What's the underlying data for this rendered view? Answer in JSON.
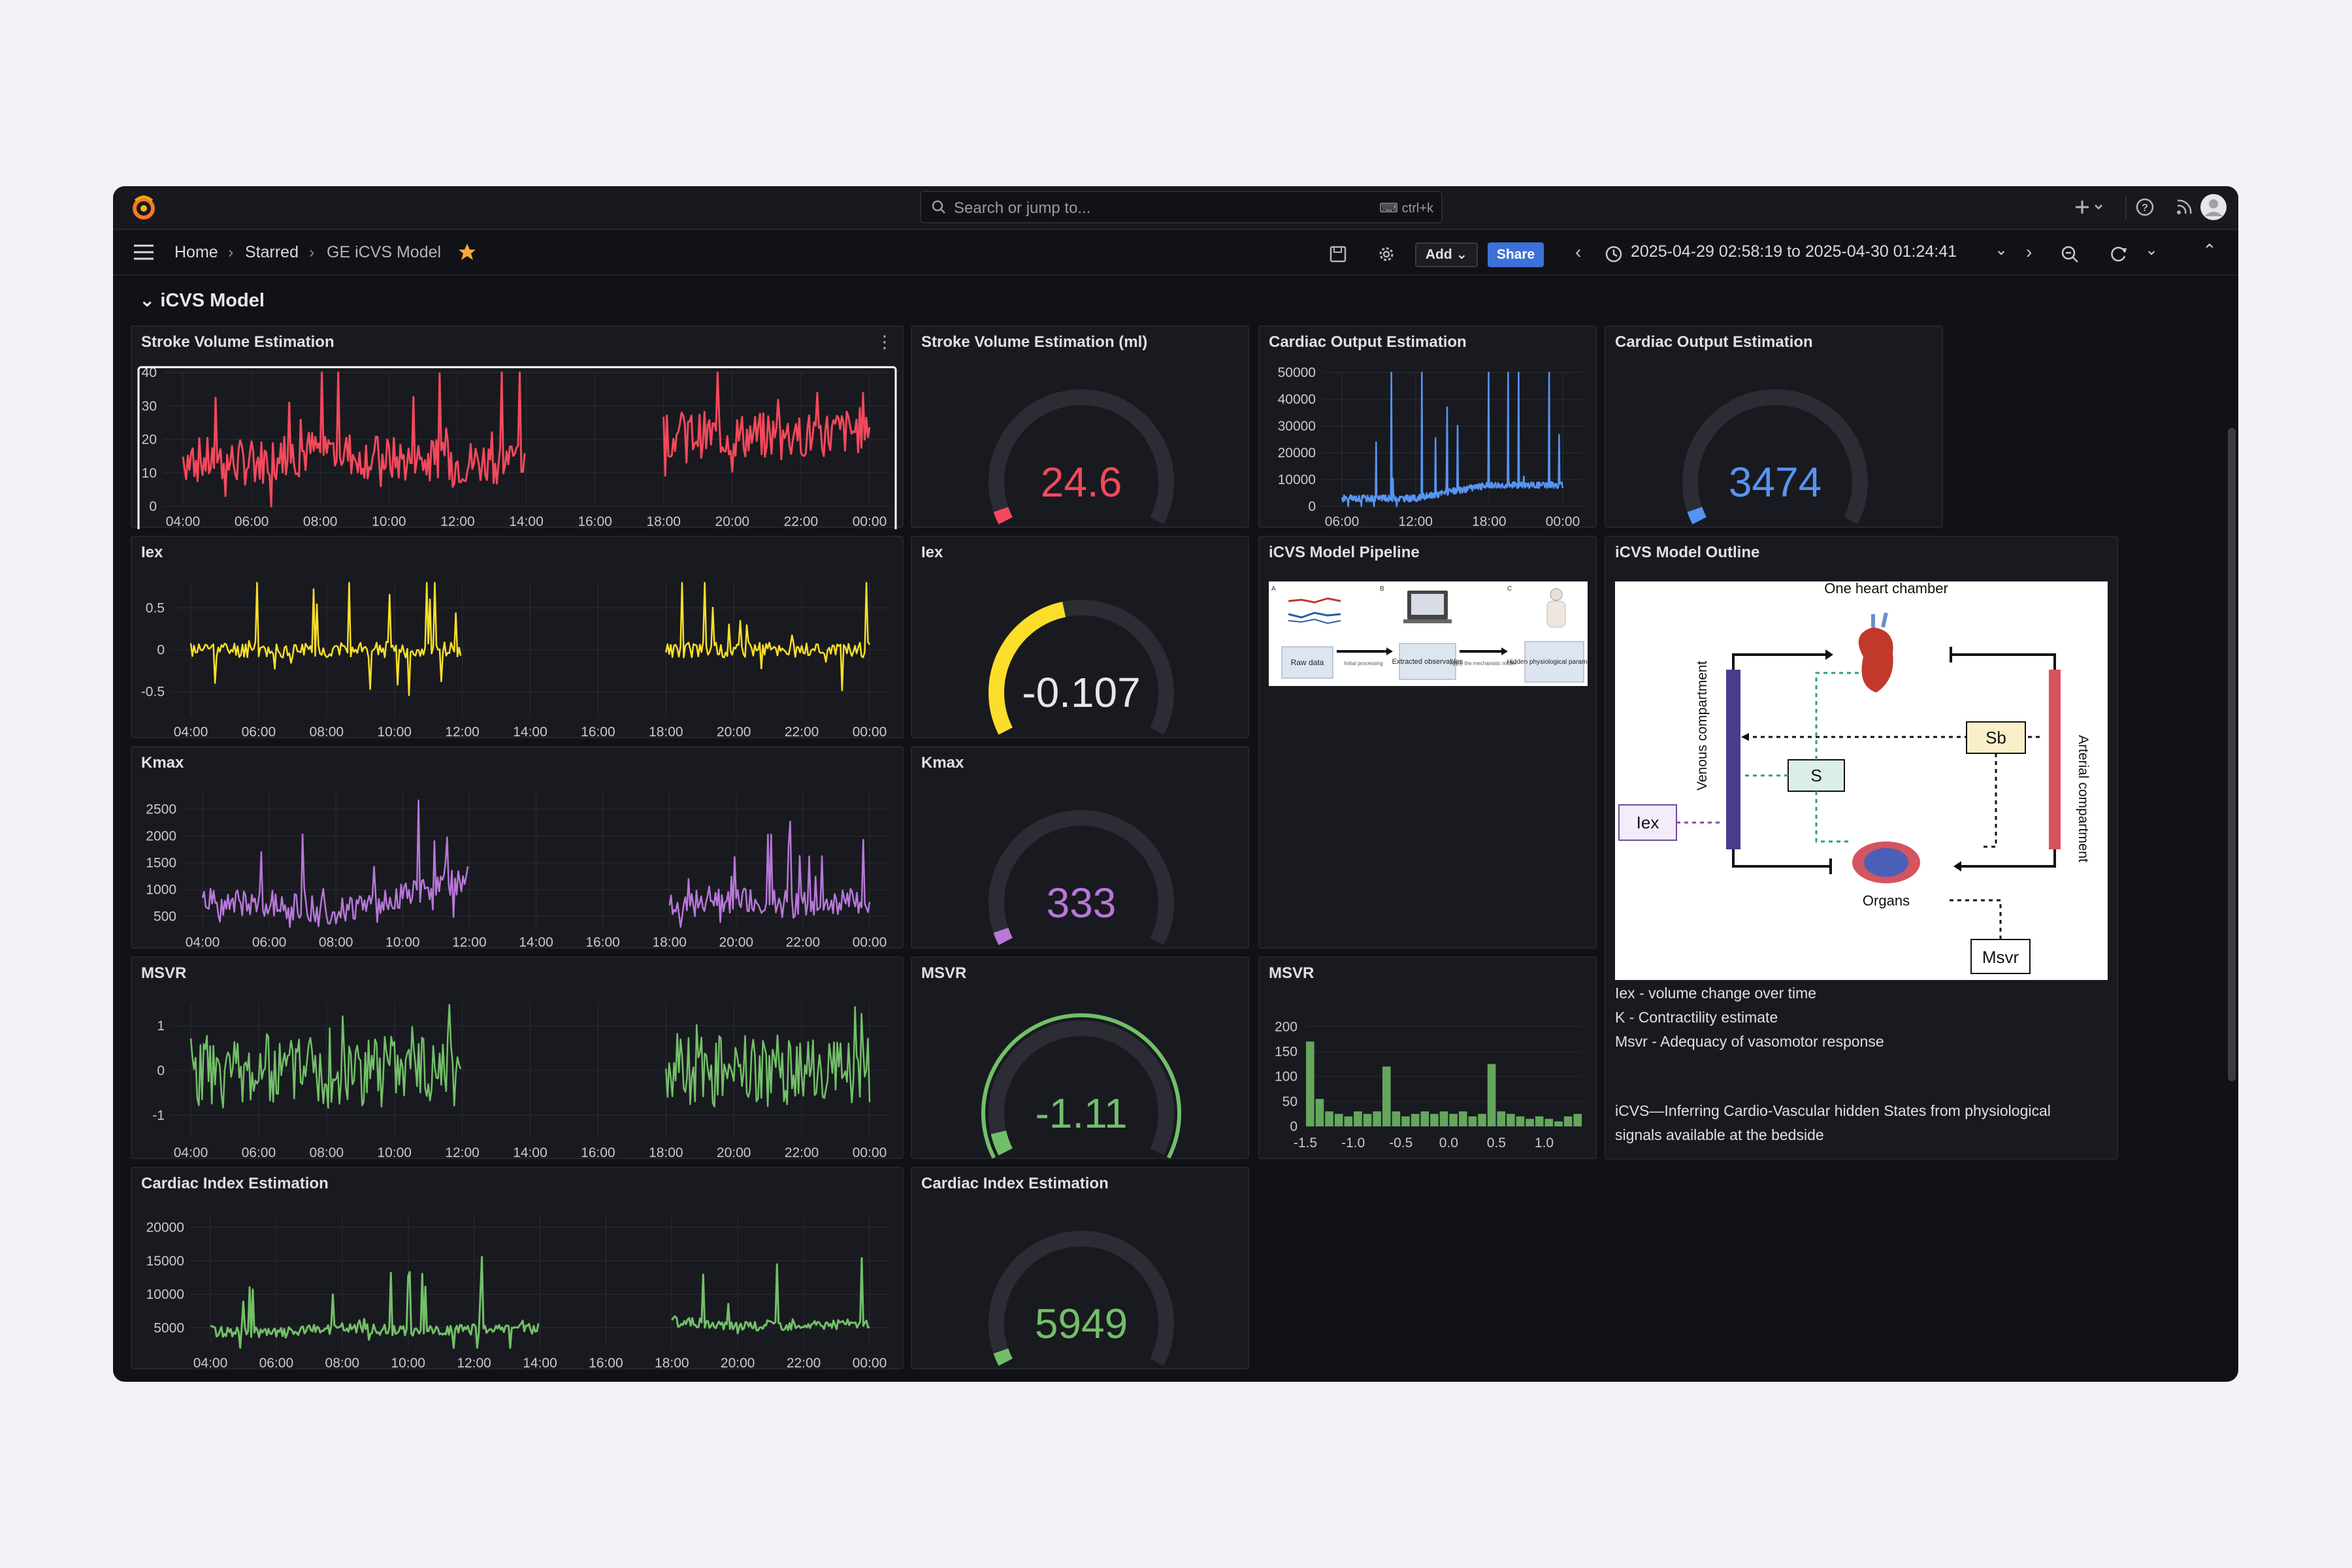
{
  "topbar": {
    "search_placeholder": "Search or jump to...",
    "search_shortcut": "ctrl+k",
    "icons": [
      "grafana-logo-icon",
      "search-icon",
      "keyboard-icon",
      "plus-icon",
      "chevron-down-icon",
      "help-icon",
      "rss-icon",
      "avatar"
    ]
  },
  "navbar": {
    "breadcrumbs": [
      "Home",
      "Starred",
      "GE iCVS Model"
    ],
    "add_label": "Add",
    "share_label": "Share",
    "time_range": "2025-04-29 02:58:19 to 2025-04-30 01:24:41",
    "starred": true
  },
  "row_title": "iCVS Model",
  "colors": {
    "background": "#111217",
    "panel": "#181a1f",
    "red": "#f2495c",
    "blue": "#5794f2",
    "yellow": "#fade2a",
    "purple": "#b877d9",
    "green": "#73bf69",
    "gauge_track": "#2b2c34"
  },
  "panels": {
    "sv_ts": {
      "title": "Stroke Volume Estimation",
      "yticks": [
        "40",
        "30",
        "20",
        "10",
        "0"
      ]
    },
    "sv_gauge": {
      "title": "Stroke Volume Estimation (ml)",
      "value": "24.6",
      "fraction": 0.0
    },
    "co_ts": {
      "title": "Cardiac Output Estimation",
      "yticks": [
        "50000",
        "40000",
        "30000",
        "20000",
        "10000",
        "0"
      ],
      "xticks": [
        "06:00",
        "12:00",
        "18:00",
        "00:00"
      ]
    },
    "co_gauge": {
      "title": "Cardiac Output Estimation",
      "value": "3474",
      "fraction": 0.0
    },
    "iex_ts": {
      "title": "Iex",
      "yticks": [
        "0.5",
        "0",
        "-0.5"
      ]
    },
    "iex_gauge": {
      "title": "Iex",
      "value": "-0.107",
      "fraction": 0.45
    },
    "pipeline": {
      "title": "iCVS Model Pipeline",
      "steps": [
        "Raw data",
        "Initial processing",
        "Extracted observables",
        "Apply the mechanistic model",
        "Hidden physiological parameters"
      ]
    },
    "outline": {
      "title": "iCVS Model Outline",
      "diagram_labels": [
        "One heart chamber",
        "Venous compartment",
        "Arterial compartment",
        "S",
        "Sb",
        "Iex",
        "Organs",
        "Msvr"
      ],
      "legend": [
        "Iex - volume change over time",
        "K - Contractility estimate",
        "Msvr - Adequacy of vasomotor response"
      ],
      "caption": [
        "iCVS—Inferring Cardio-Vascular hidden States from physiological",
        "signals available at the bedside"
      ]
    },
    "kmax_ts": {
      "title": "Kmax",
      "yticks": [
        "2500",
        "2000",
        "1500",
        "1000",
        "500"
      ]
    },
    "kmax_gauge": {
      "title": "Kmax",
      "value": "333",
      "fraction": 0.03
    },
    "msvr_ts": {
      "title": "MSVR",
      "yticks": [
        "1",
        "0",
        "-1"
      ]
    },
    "msvr_gauge": {
      "title": "MSVR",
      "value": "-1.11",
      "fraction": 0.06
    },
    "msvr_hist": {
      "title": "MSVR",
      "yticks": [
        "200",
        "150",
        "100",
        "50",
        "0"
      ],
      "xticks": [
        "-1.5",
        "-1.0",
        "-0.5",
        "0.0",
        "0.5",
        "1.0"
      ]
    },
    "ci_ts": {
      "title": "Cardiac Index Estimation",
      "yticks": [
        "20000",
        "15000",
        "10000",
        "5000"
      ]
    },
    "ci_gauge": {
      "title": "Cardiac Index Estimation",
      "value": "5949",
      "fraction": 0.0
    }
  },
  "time_xticks": [
    "04:00",
    "06:00",
    "08:00",
    "10:00",
    "12:00",
    "14:00",
    "16:00",
    "18:00",
    "20:00",
    "22:00",
    "00:00"
  ],
  "chart_data": [
    {
      "type": "line",
      "title": "Stroke Volume Estimation",
      "ylim": [
        0,
        40
      ],
      "x": [
        "04:00",
        "06:00",
        "08:00",
        "10:00",
        "12:00",
        "14:00",
        "16:00",
        "18:00",
        "20:00",
        "22:00",
        "00:00"
      ],
      "series": [
        {
          "values": [
            14,
            13,
            17,
            14,
            13,
            14,
            null,
            22,
            21,
            21,
            23
          ]
        }
      ]
    },
    {
      "type": "line",
      "title": "Cardiac Output Estimation",
      "ylim": [
        0,
        50000
      ],
      "x": [
        "06:00",
        "12:00",
        "18:00",
        "00:00"
      ],
      "series": [
        {
          "values": [
            3000,
            3000,
            8000,
            8000
          ]
        }
      ]
    },
    {
      "type": "line",
      "title": "Iex",
      "ylim": [
        -0.8,
        0.8
      ],
      "x": [
        "04:00",
        "06:00",
        "08:00",
        "10:00",
        "12:00",
        "14:00",
        "16:00",
        "18:00",
        "20:00",
        "22:00",
        "00:00"
      ],
      "series": [
        {
          "values": [
            0,
            0,
            0,
            0,
            0,
            null,
            null,
            0,
            0,
            0,
            0
          ]
        }
      ]
    },
    {
      "type": "line",
      "title": "Kmax",
      "ylim": [
        300,
        2800
      ],
      "x": [
        "04:00",
        "06:00",
        "08:00",
        "10:00",
        "12:00",
        "14:00",
        "16:00",
        "18:00",
        "20:00",
        "22:00",
        "00:00"
      ],
      "series": [
        {
          "values": [
            800,
            700,
            600,
            900,
            1200,
            null,
            null,
            700,
            800,
            700,
            800
          ]
        }
      ]
    },
    {
      "type": "line",
      "title": "MSVR",
      "ylim": [
        -1.5,
        1.5
      ],
      "x": [
        "04:00",
        "06:00",
        "08:00",
        "10:00",
        "12:00",
        "14:00",
        "16:00",
        "18:00",
        "20:00",
        "22:00",
        "00:00"
      ],
      "series": [
        {
          "values": [
            0,
            0,
            0,
            0,
            0,
            null,
            null,
            0,
            0,
            0,
            0
          ]
        }
      ]
    },
    {
      "type": "bar",
      "title": "MSVR",
      "ylim": [
        0,
        220
      ],
      "categories": [
        "-1.5",
        "-1.4",
        "-1.3",
        "-1.2",
        "-1.1",
        "-1.0",
        "-0.9",
        "-0.8",
        "-0.7",
        "-0.6",
        "-0.5",
        "-0.4",
        "-0.3",
        "-0.2",
        "-0.1",
        "0.0",
        "0.1",
        "0.2",
        "0.3",
        "0.4",
        "0.5",
        "0.6",
        "0.7",
        "0.8",
        "0.9",
        "1.0",
        "1.1",
        "1.2",
        "1.3"
      ],
      "values": [
        170,
        55,
        30,
        25,
        20,
        30,
        25,
        30,
        120,
        30,
        20,
        25,
        30,
        25,
        30,
        25,
        30,
        20,
        25,
        125,
        30,
        25,
        20,
        15,
        20,
        15,
        10,
        20,
        25
      ]
    },
    {
      "type": "line",
      "title": "Cardiac Index Estimation",
      "ylim": [
        2000,
        22000
      ],
      "x": [
        "04:00",
        "06:00",
        "08:00",
        "10:00",
        "12:00",
        "14:00",
        "16:00",
        "18:00",
        "20:00",
        "22:00",
        "00:00"
      ],
      "series": [
        {
          "values": [
            4500,
            4200,
            5000,
            4500,
            4700,
            4900,
            null,
            6000,
            5200,
            5500,
            5600
          ]
        }
      ]
    }
  ]
}
